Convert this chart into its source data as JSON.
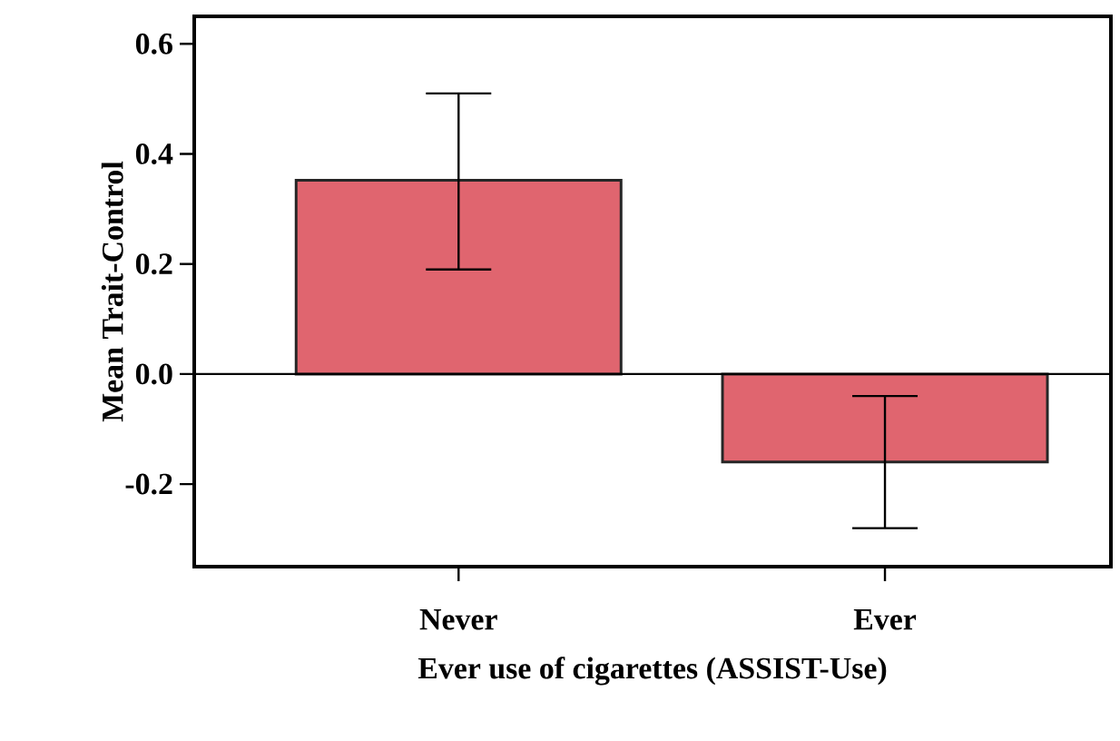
{
  "chart_data": {
    "type": "bar",
    "xlabel": "Ever use of cigarettes (ASSIST-Use)",
    "ylabel": "Mean Trait-Control",
    "categories": [
      "Never",
      "Ever"
    ],
    "values": [
      0.352,
      -0.16
    ],
    "errors": [
      [
        0.19,
        0.51
      ],
      [
        -0.28,
        -0.04
      ]
    ],
    "color": "#e0656f",
    "ylim": [
      -0.35,
      0.65
    ],
    "yticks": [
      {
        "value": -0.2,
        "label": "-0.2"
      },
      {
        "value": 0.0,
        "label": "0.0"
      },
      {
        "value": 0.2,
        "label": "0.2"
      },
      {
        "value": 0.4,
        "label": "0.4"
      },
      {
        "value": 0.6,
        "label": "0.6"
      }
    ],
    "ref_lines": [
      {
        "axis": "y",
        "value": 0
      }
    ],
    "grid": false
  }
}
